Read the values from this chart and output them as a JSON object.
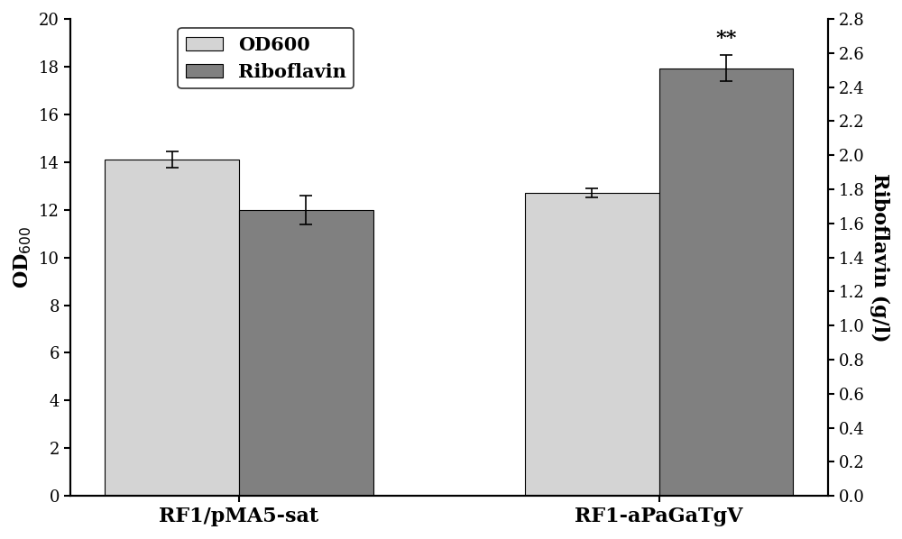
{
  "groups": [
    "RF1/pMA5-sat",
    "RF1-aPaGaTgV"
  ],
  "od600_values": [
    14.1,
    12.7
  ],
  "od600_errors": [
    0.35,
    0.2
  ],
  "riboflavin_values": [
    1.68,
    2.51
  ],
  "riboflavin_errors": [
    0.085,
    0.077
  ],
  "od600_color": "#d4d4d4",
  "riboflavin_color": "#808080",
  "ylabel_left": "OD$_{600}$",
  "ylabel_right": "Riboflavin (g/l)",
  "ylim_left": [
    0,
    20
  ],
  "ylim_right": [
    0.0,
    2.8
  ],
  "yticks_left": [
    0,
    2,
    4,
    6,
    8,
    10,
    12,
    14,
    16,
    18,
    20
  ],
  "yticks_right": [
    0.0,
    0.2,
    0.4,
    0.6,
    0.8,
    1.0,
    1.2,
    1.4,
    1.6,
    1.8,
    2.0,
    2.2,
    2.4,
    2.6,
    2.8
  ],
  "significance_label": "**",
  "bar_width": 0.32,
  "legend_labels": [
    "OD600",
    "Riboflavin"
  ],
  "background_color": "#ffffff",
  "font_size": 14,
  "axis_label_fontsize": 16,
  "tick_fontsize": 13
}
